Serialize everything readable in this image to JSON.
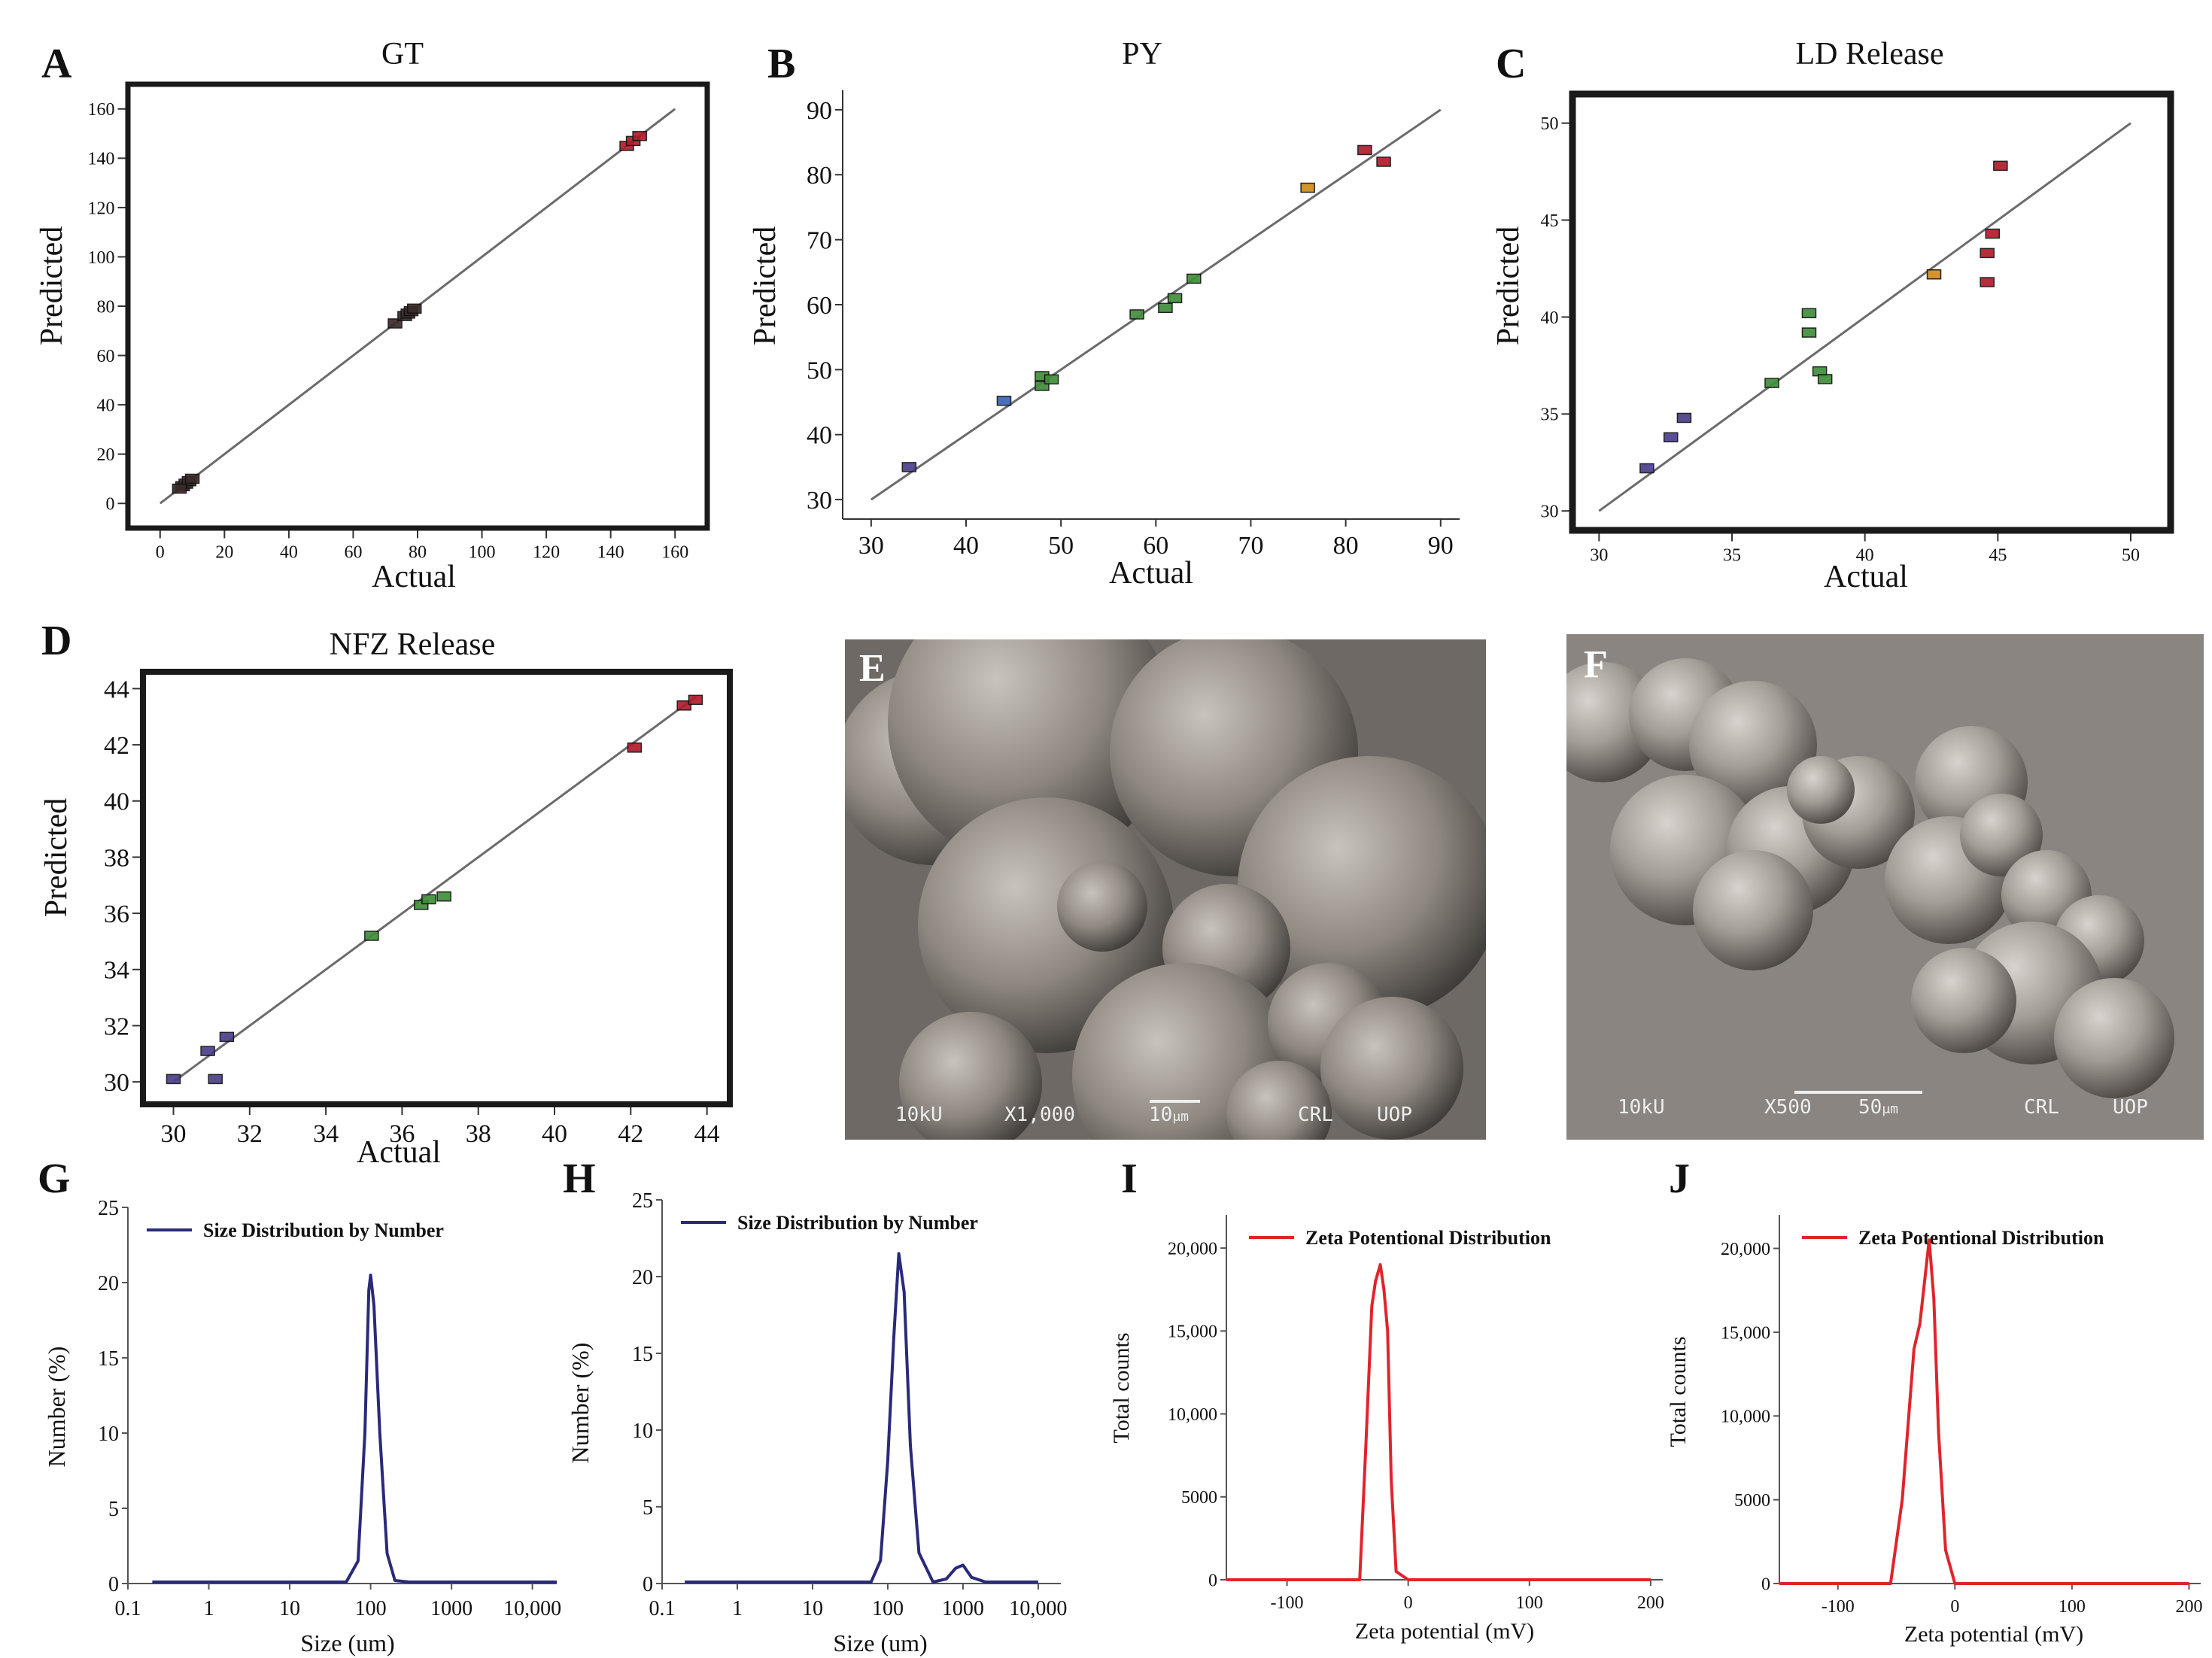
{
  "figure_title": "Composite figure: predicted vs actual plots, SEM micrographs, size and zeta distributions",
  "colors": {
    "line": "#6b6b6b",
    "purple": "#4b3f8c",
    "blue": "#3b63b8",
    "green": "#3f8f3a",
    "orange": "#d08a1c",
    "red": "#b01c2c",
    "dark": "#3a2a2a",
    "navy": "#2a2a7a",
    "zeta": "#e0242c"
  },
  "chart_data": [
    {
      "id": "A",
      "type": "scatter",
      "letter": "A",
      "title": "GT",
      "xlabel": "Actual",
      "ylabel": "Predicted",
      "xlim": [
        -10,
        170
      ],
      "ylim": [
        -10,
        170
      ],
      "xticks": [
        "0",
        "20",
        "40",
        "60",
        "80",
        "100",
        "120",
        "140",
        "160"
      ],
      "yticks": [
        "0",
        "20",
        "40",
        "60",
        "80",
        "100",
        "120",
        "140",
        "160"
      ],
      "diag": [
        0,
        160
      ],
      "points": [
        {
          "x": 7,
          "y": 7,
          "c": "dark"
        },
        {
          "x": 8,
          "y": 8,
          "c": "dark"
        },
        {
          "x": 9,
          "y": 9,
          "c": "dark"
        },
        {
          "x": 10,
          "y": 10,
          "c": "dark"
        },
        {
          "x": 6,
          "y": 6,
          "c": "dark"
        },
        {
          "x": 73,
          "y": 73,
          "c": "dark"
        },
        {
          "x": 76,
          "y": 76,
          "c": "dark"
        },
        {
          "x": 77,
          "y": 77,
          "c": "dark"
        },
        {
          "x": 78,
          "y": 78,
          "c": "dark"
        },
        {
          "x": 79,
          "y": 79,
          "c": "dark"
        },
        {
          "x": 145,
          "y": 145,
          "c": "red"
        },
        {
          "x": 147,
          "y": 147,
          "c": "red"
        },
        {
          "x": 149,
          "y": 149,
          "c": "red"
        }
      ]
    },
    {
      "id": "B",
      "type": "scatter",
      "letter": "B",
      "title": "PY",
      "xlabel": "Actual",
      "ylabel": "Predicted",
      "xlim": [
        27,
        92
      ],
      "ylim": [
        27,
        93
      ],
      "xticks": [
        "30",
        "40",
        "50",
        "60",
        "70",
        "80",
        "90"
      ],
      "yticks": [
        "30",
        "40",
        "50",
        "60",
        "70",
        "80",
        "90"
      ],
      "diag": [
        30,
        90
      ],
      "points": [
        {
          "x": 34,
          "y": 35,
          "c": "purple"
        },
        {
          "x": 44,
          "y": 45.2,
          "c": "blue"
        },
        {
          "x": 48,
          "y": 47.5,
          "c": "green"
        },
        {
          "x": 48,
          "y": 49,
          "c": "green"
        },
        {
          "x": 49,
          "y": 48.5,
          "c": "green"
        },
        {
          "x": 58,
          "y": 58.5,
          "c": "green"
        },
        {
          "x": 61,
          "y": 59.5,
          "c": "green"
        },
        {
          "x": 62,
          "y": 61,
          "c": "green"
        },
        {
          "x": 64,
          "y": 64,
          "c": "green"
        },
        {
          "x": 76,
          "y": 78,
          "c": "orange"
        },
        {
          "x": 82,
          "y": 83.8,
          "c": "red"
        },
        {
          "x": 84,
          "y": 82,
          "c": "red"
        }
      ]
    },
    {
      "id": "C",
      "type": "scatter",
      "letter": "C",
      "title": "LD Release",
      "xlabel": "Actual",
      "ylabel": "Predicted",
      "xlim": [
        29,
        51.5
      ],
      "ylim": [
        29,
        51.5
      ],
      "xticks": [
        "30",
        "35",
        "40",
        "45",
        "50"
      ],
      "yticks": [
        "30",
        "35",
        "40",
        "45",
        "50"
      ],
      "diag": [
        30,
        50
      ],
      "points": [
        {
          "x": 31.8,
          "y": 32.2,
          "c": "purple"
        },
        {
          "x": 32.7,
          "y": 33.8,
          "c": "purple"
        },
        {
          "x": 33.2,
          "y": 34.8,
          "c": "purple"
        },
        {
          "x": 36.5,
          "y": 36.6,
          "c": "green"
        },
        {
          "x": 37.9,
          "y": 40.2,
          "c": "green"
        },
        {
          "x": 37.9,
          "y": 39.2,
          "c": "green"
        },
        {
          "x": 38.3,
          "y": 37.2,
          "c": "green"
        },
        {
          "x": 38.5,
          "y": 36.8,
          "c": "green"
        },
        {
          "x": 42.6,
          "y": 42.2,
          "c": "orange"
        },
        {
          "x": 44.6,
          "y": 43.3,
          "c": "red"
        },
        {
          "x": 44.8,
          "y": 44.3,
          "c": "red"
        },
        {
          "x": 44.6,
          "y": 41.8,
          "c": "red"
        },
        {
          "x": 45.1,
          "y": 47.8,
          "c": "red"
        }
      ]
    },
    {
      "id": "D",
      "type": "scatter",
      "letter": "D",
      "title": "NFZ Release",
      "xlabel": "Actual",
      "ylabel": "Predicted",
      "xlim": [
        29.2,
        44.6
      ],
      "ylim": [
        29.2,
        44.6
      ],
      "xticks": [
        "30",
        "32",
        "34",
        "36",
        "38",
        "40",
        "42",
        "44"
      ],
      "yticks": [
        "30",
        "32",
        "34",
        "36",
        "38",
        "40",
        "42",
        "44"
      ],
      "diag": [
        30,
        43.7
      ],
      "points": [
        {
          "x": 30,
          "y": 30.1,
          "c": "purple"
        },
        {
          "x": 30.9,
          "y": 31.1,
          "c": "purple"
        },
        {
          "x": 31.1,
          "y": 30.1,
          "c": "purple"
        },
        {
          "x": 31.4,
          "y": 31.6,
          "c": "purple"
        },
        {
          "x": 35.2,
          "y": 35.2,
          "c": "green"
        },
        {
          "x": 36.5,
          "y": 36.3,
          "c": "green"
        },
        {
          "x": 36.7,
          "y": 36.5,
          "c": "green"
        },
        {
          "x": 37.1,
          "y": 36.6,
          "c": "green"
        },
        {
          "x": 42.1,
          "y": 41.9,
          "c": "red"
        },
        {
          "x": 43.4,
          "y": 43.4,
          "c": "red"
        },
        {
          "x": 43.7,
          "y": 43.6,
          "c": "red"
        }
      ]
    },
    {
      "id": "G",
      "type": "line",
      "letter": "G",
      "legend": "Size Distribution by Number",
      "xlabel": "Size (um)",
      "ylabel": "Number (%)",
      "xscale": "log",
      "xlim": [
        0.1,
        20000
      ],
      "ylim": [
        0,
        25
      ],
      "xticks": [
        "0.1",
        "1",
        "10",
        "100",
        "1000",
        "10,000"
      ],
      "xtickvals": [
        0.1,
        1,
        10,
        100,
        1000,
        10000
      ],
      "yticks": [
        "0",
        "5",
        "10",
        "15",
        "20",
        "25"
      ],
      "ytickvals": [
        0,
        5,
        10,
        15,
        20,
        25
      ],
      "series": [
        {
          "name": "Size Distribution by Number",
          "x": [
            0.2,
            50,
            70,
            85,
            95,
            100,
            110,
            130,
            160,
            200,
            300,
            20000
          ],
          "y": [
            0.1,
            0.1,
            1.5,
            10,
            19.5,
            20.5,
            18.5,
            10,
            2,
            0.2,
            0.1,
            0.1
          ]
        }
      ]
    },
    {
      "id": "H",
      "type": "line",
      "letter": "H",
      "legend": "Size Distribution by Number",
      "xlabel": "Size (um)",
      "ylabel": "Number (%)",
      "xscale": "log",
      "xlim": [
        0.1,
        20000
      ],
      "ylim": [
        0,
        25
      ],
      "xticks": [
        "0.1",
        "1",
        "10",
        "100",
        "1000",
        "10,000"
      ],
      "xtickvals": [
        0.1,
        1,
        10,
        100,
        1000,
        10000
      ],
      "yticks": [
        "0",
        "5",
        "10",
        "15",
        "20",
        "25"
      ],
      "ytickvals": [
        0,
        5,
        10,
        15,
        20,
        25
      ],
      "series": [
        {
          "name": "Size Distribution by Number",
          "x": [
            0.2,
            60,
            80,
            100,
            120,
            140,
            165,
            200,
            260,
            400,
            600,
            800,
            1000,
            1300,
            2000,
            10000
          ],
          "y": [
            0.1,
            0.1,
            1.5,
            8,
            16,
            21.5,
            19,
            9,
            2,
            0.1,
            0.3,
            1.0,
            1.2,
            0.4,
            0.1,
            0.1
          ]
        }
      ]
    },
    {
      "id": "I",
      "type": "line",
      "letter": "I",
      "legend": "Zeta Potentional Distribution",
      "xlabel": "Zeta potential (mV)",
      "ylabel": "Total counts",
      "xscale": "linear",
      "xlim": [
        -150,
        210
      ],
      "ylim": [
        0,
        22000
      ],
      "xticks": [
        "-100",
        "0",
        "100",
        "200"
      ],
      "xtickvals": [
        -100,
        0,
        100,
        200
      ],
      "yticks": [
        "0",
        "5000",
        "10,000",
        "15,000",
        "20,000"
      ],
      "ytickvals": [
        0,
        5000,
        10000,
        15000,
        20000
      ],
      "series": [
        {
          "name": "Zeta Potentional Distribution",
          "x": [
            -150,
            -40,
            -35,
            -30,
            -27,
            -23,
            -20,
            -17,
            -14,
            -10,
            0,
            200
          ],
          "y": [
            0,
            0,
            8000,
            16500,
            18000,
            19000,
            17500,
            15000,
            6000,
            500,
            0,
            0
          ]
        }
      ]
    },
    {
      "id": "J",
      "type": "line",
      "letter": "J",
      "legend": "Zeta Potentional Distribution",
      "xlabel": "Zeta potential (mV)",
      "ylabel": "Total counts",
      "xscale": "linear",
      "xlim": [
        -150,
        210
      ],
      "ylim": [
        0,
        22000
      ],
      "xticks": [
        "-100",
        "0",
        "100",
        "200"
      ],
      "xtickvals": [
        -100,
        0,
        100,
        200
      ],
      "yticks": [
        "0",
        "5000",
        "10,000",
        "15,000",
        "20,000"
      ],
      "ytickvals": [
        0,
        5000,
        10000,
        15000,
        20000
      ],
      "series": [
        {
          "name": "Zeta Potentional Distribution",
          "x": [
            -150,
            -55,
            -45,
            -35,
            -30,
            -26,
            -22,
            -18,
            -14,
            -8,
            0,
            200
          ],
          "y": [
            0,
            0,
            5000,
            14000,
            15500,
            18000,
            20500,
            17000,
            9000,
            2000,
            0,
            0
          ]
        }
      ]
    }
  ],
  "micrographs": [
    {
      "letter": "E",
      "voltage": "10kU",
      "mag": "X1,000",
      "scale": "10",
      "scale_unit": "μm",
      "lab": "CRL",
      "org": "UOP"
    },
    {
      "letter": "F",
      "voltage": "10kU",
      "mag": "X500",
      "scale": "50",
      "scale_unit": "μm",
      "lab": "CRL",
      "org": "UOP"
    }
  ]
}
